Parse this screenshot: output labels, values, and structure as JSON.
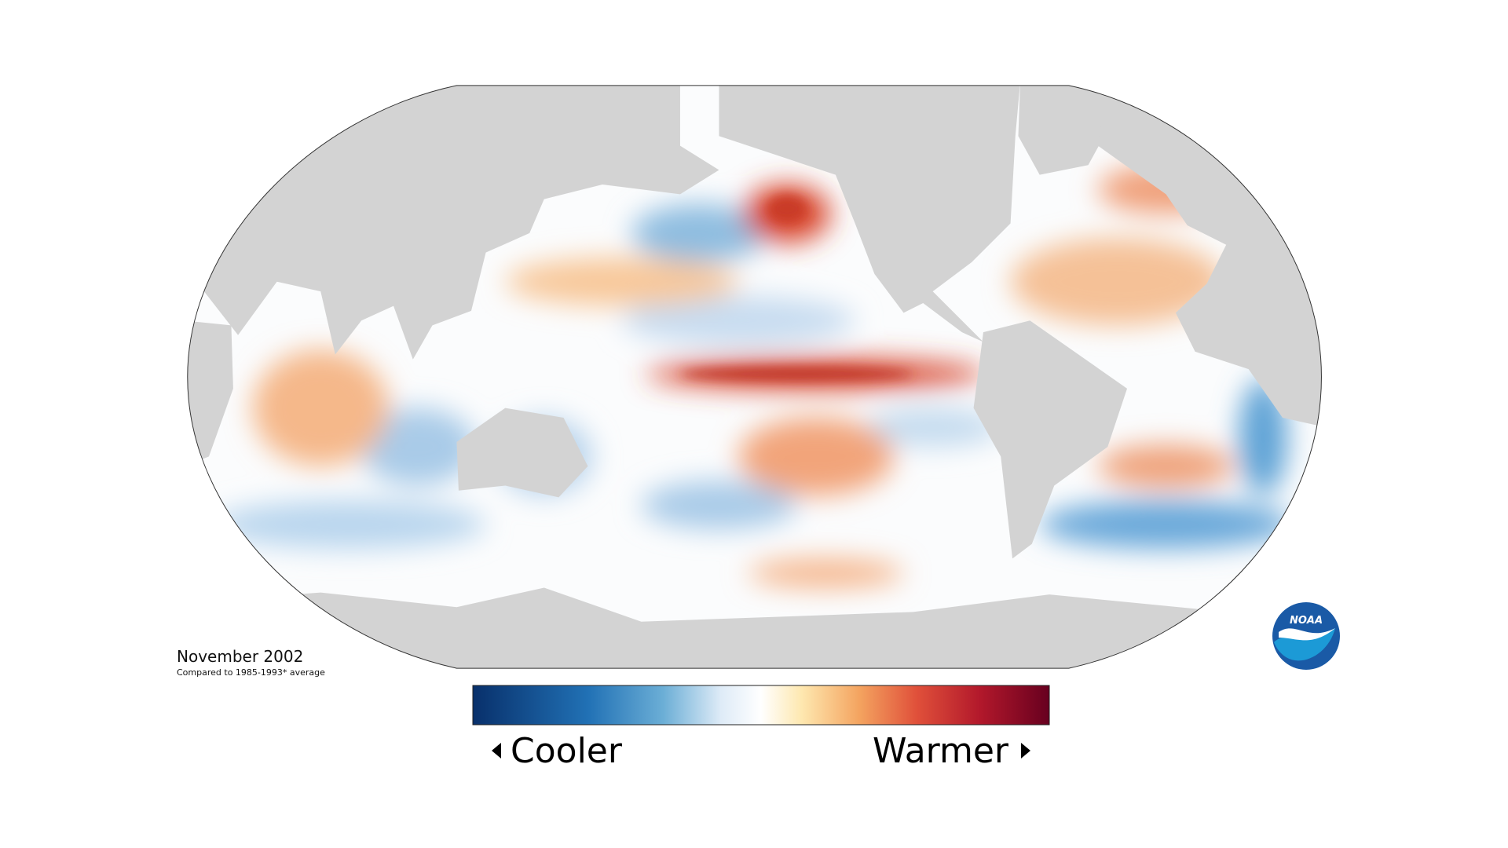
{
  "map": {
    "date": "November 2002",
    "subtitle": "Compared to 1985-1993* average"
  },
  "legend": {
    "cooler": "Cooler",
    "warmer": "Warmer"
  },
  "logo": {
    "text": "NOAA"
  }
}
